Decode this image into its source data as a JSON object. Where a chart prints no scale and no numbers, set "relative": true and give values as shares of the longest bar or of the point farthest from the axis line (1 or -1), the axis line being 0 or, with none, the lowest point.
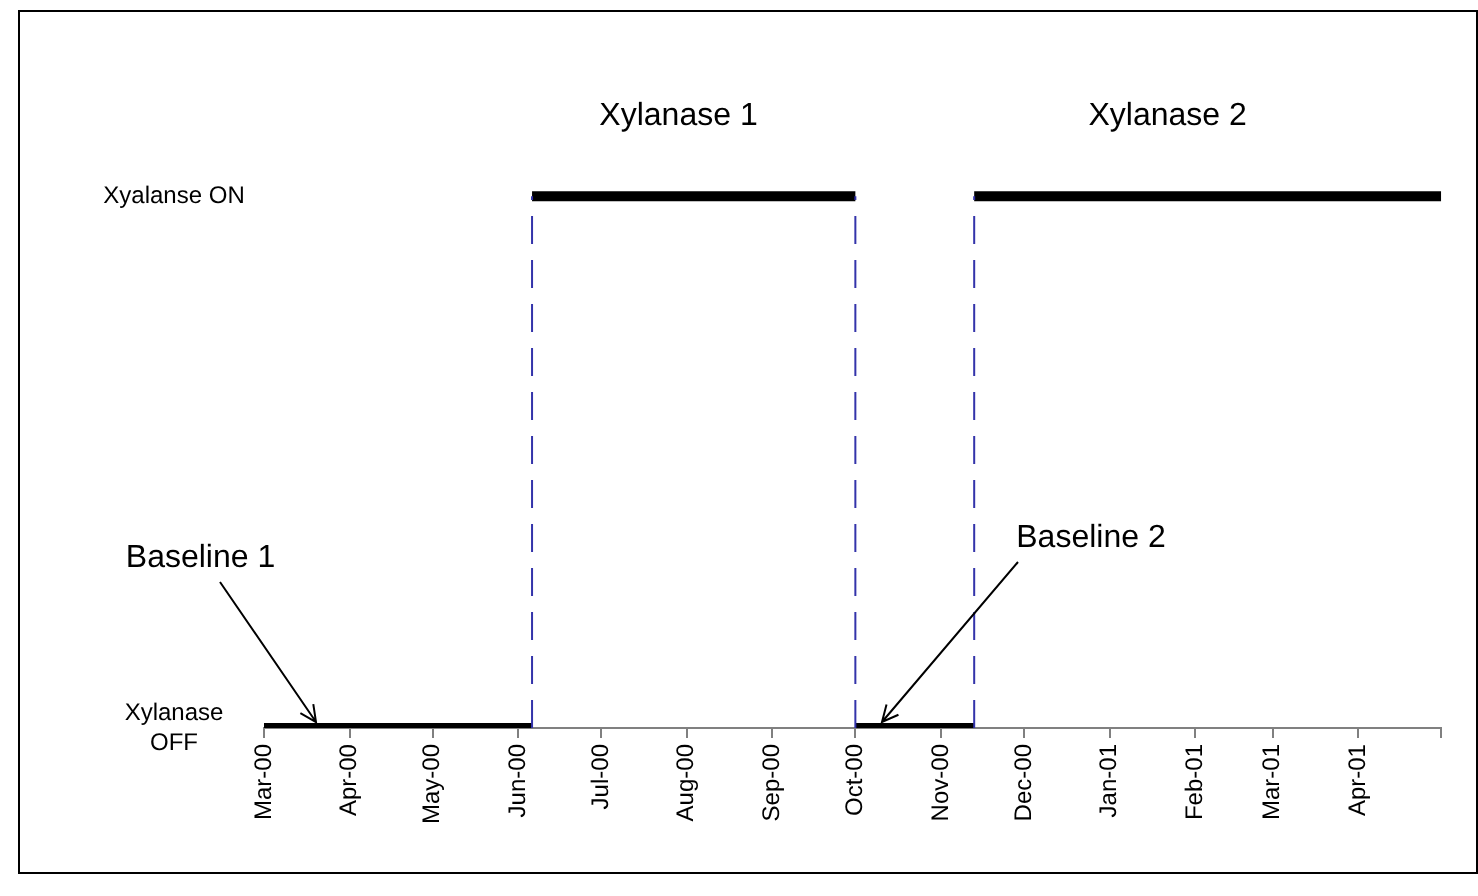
{
  "chart_data": {
    "type": "line",
    "series": [
      {
        "color": "#000000",
        "x": [
          "2000-03-01",
          "2000-06-06",
          "2000-06-06",
          "2000-10-01",
          "2000-10-01",
          "2000-11-13",
          "2000-11-13",
          "2001-05-01"
        ],
        "values": [
          0,
          0,
          1,
          1,
          0,
          0,
          1,
          1
        ]
      }
    ],
    "relative": true,
    "xlim": [
      "2000-03-01",
      "2001-05-01"
    ],
    "xticks": [
      {
        "value": "2000-03-01",
        "label": "Mar-00"
      },
      {
        "value": "2000-04-01",
        "label": "Apr-00"
      },
      {
        "value": "2000-05-01",
        "label": "May-00"
      },
      {
        "value": "2000-06-01",
        "label": "Jun-00"
      },
      {
        "value": "2000-07-01",
        "label": "Jul-00"
      },
      {
        "value": "2000-08-01",
        "label": "Aug-00"
      },
      {
        "value": "2000-09-01",
        "label": "Sep-00"
      },
      {
        "value": "2000-10-01",
        "label": "Oct-00"
      },
      {
        "value": "2000-11-01",
        "label": "Nov-00"
      },
      {
        "value": "2000-12-01",
        "label": "Dec-00"
      },
      {
        "value": "2001-01-01",
        "label": "Jan-01"
      },
      {
        "value": "2001-02-01",
        "label": "Feb-01"
      },
      {
        "value": "2001-03-01",
        "label": "Mar-01"
      },
      {
        "value": "2001-04-01",
        "label": "Apr-01"
      },
      {
        "value": "2001-05-01",
        "label": null
      }
    ],
    "ref_lines": [
      {
        "axis": "x",
        "value": "2000-06-06",
        "color": "#3333aa",
        "line_style": "dashed"
      },
      {
        "axis": "x",
        "value": "2000-10-01",
        "color": "#3333aa",
        "line_style": "dashed"
      },
      {
        "axis": "x",
        "value": "2000-11-13",
        "color": "#3333aa",
        "line_style": "dashed"
      }
    ],
    "annotations": [
      "Xyalanse ON",
      "Xylanase OFF",
      {
        "text": "Xylanase 1",
        "x": "2000-07-29",
        "y": 1
      },
      {
        "text": "Xylanase 2",
        "x": "2001-01-22",
        "y": 1
      },
      {
        "text": "Baseline 1",
        "x": "2000-03-20",
        "y": 0
      },
      {
        "text": "Baseline 2",
        "x": "2000-10-11",
        "y": 0
      }
    ],
    "grid": false,
    "legend": false,
    "marker": "none",
    "line_style": "solid"
  }
}
